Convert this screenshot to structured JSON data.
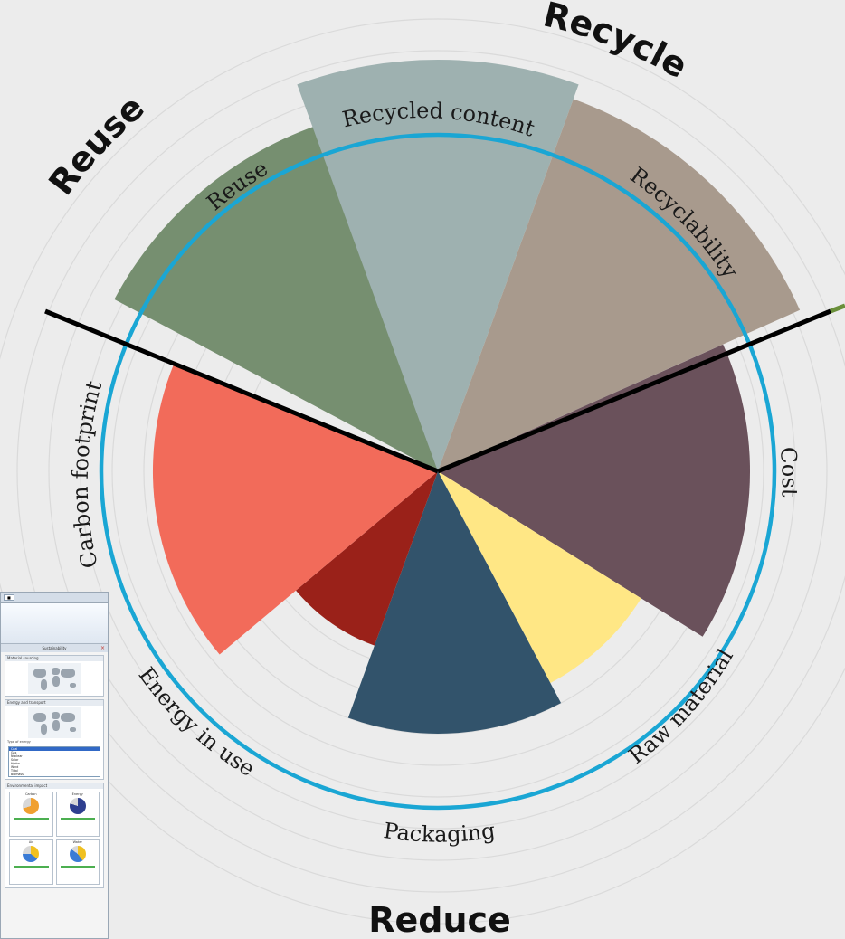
{
  "diagram": {
    "sections": [
      {
        "name": "Reuse",
        "label": "Reuse",
        "rotate": -60
      },
      {
        "name": "Recycle",
        "label": "Recycle",
        "rotate": 20
      },
      {
        "name": "Reduce",
        "label": "Reduce",
        "rotate": 0
      }
    ],
    "segments": [
      {
        "name": "Reuse",
        "label": "Reuse",
        "color": "#768f70"
      },
      {
        "name": "Recycled content",
        "label": "Recycled content",
        "color": "#9eb1b0"
      },
      {
        "name": "Recyclability",
        "label": "Recyclability",
        "color": "#a89a8d"
      },
      {
        "name": "Cost",
        "label": "Cost",
        "color": "#6a515b"
      },
      {
        "name": "Raw material",
        "label": "Raw material",
        "color": "#ffe785"
      },
      {
        "name": "Packaging",
        "label": "Packaging",
        "color": "#32536b"
      },
      {
        "name": "Energy in use",
        "label": "Energy in use",
        "color": "#9a2119"
      },
      {
        "name": "Carbon footprint",
        "label": "Carbon footprint",
        "color": "#f26b5a"
      }
    ],
    "ring_color": "#1aa6d4",
    "divider_color": "#000000",
    "background": "#ececec"
  },
  "inset": {
    "panel_title": "Sustainability",
    "close_icon": "close-icon",
    "section1_title": "Material sourcing",
    "section2_title": "Energy and transport",
    "section3_title": "Environmental impact",
    "list_label": "Type of energy",
    "list_items": [
      "Coal",
      "Gas",
      "Nuclear",
      "Solar",
      "Hydro",
      "Wind",
      "Tidal",
      "Biomass"
    ],
    "pie_labels": [
      "Carbon",
      "Energy",
      "Air",
      "Water"
    ]
  }
}
